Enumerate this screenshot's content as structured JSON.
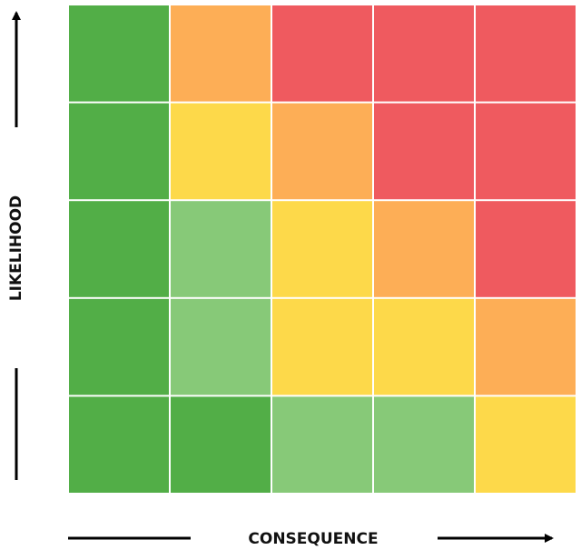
{
  "axes": {
    "y_label": "LIKELIHOOD",
    "x_label": "CONSEQUENCE"
  },
  "matrix": {
    "cell_colors": [
      [
        "#52ae47",
        "#fdae56",
        "#ef5a5f",
        "#ef5a5f",
        "#ef5a5f"
      ],
      [
        "#52ae47",
        "#fdd94a",
        "#fdae56",
        "#ef5a5f",
        "#ef5a5f"
      ],
      [
        "#52ae47",
        "#87c978",
        "#fdd94a",
        "#fdae56",
        "#ef5a5f"
      ],
      [
        "#52ae47",
        "#87c978",
        "#fdd94a",
        "#fdd94a",
        "#fdae56"
      ],
      [
        "#52ae47",
        "#52ae47",
        "#87c978",
        "#87c978",
        "#fdd94a"
      ]
    ]
  }
}
